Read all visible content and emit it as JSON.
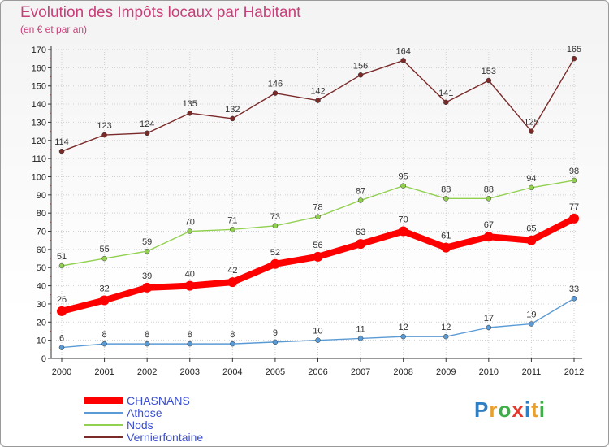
{
  "header": {
    "title": "Evolution des Impôts locaux par Habitant",
    "subtitle": "(en € et par an)"
  },
  "logo": {
    "text": "Proxiti"
  },
  "colors": {
    "CHASNANS": "#ff0000",
    "Athose": "#5b9bd5",
    "Nods": "#92d050",
    "Vernierfontaine": "#7b2a2a",
    "axis": "#333333",
    "gridline": "#d0d0d0"
  },
  "chart_data": {
    "type": "line",
    "title": "Evolution des Impôts locaux par Habitant",
    "subtitle": "(en € et par an)",
    "xlabel": "",
    "ylabel": "",
    "ylim": [
      0,
      170
    ],
    "yticks": [
      0,
      10,
      20,
      30,
      40,
      50,
      60,
      70,
      80,
      90,
      100,
      110,
      120,
      130,
      140,
      150,
      160,
      170
    ],
    "grid": true,
    "legend_position": "bottom-left",
    "x": [
      "2000",
      "2001",
      "2002",
      "2003",
      "2004",
      "2005",
      "2006",
      "2007",
      "2008",
      "2009",
      "2010",
      "2011",
      "2012"
    ],
    "series": [
      {
        "name": "CHASNANS",
        "values": [
          26,
          32,
          39,
          40,
          42,
          52,
          56,
          63,
          70,
          61,
          67,
          65,
          77
        ]
      },
      {
        "name": "Athose",
        "values": [
          6,
          8,
          8,
          8,
          8,
          9,
          10,
          11,
          12,
          12,
          17,
          19,
          33
        ]
      },
      {
        "name": "Nods",
        "values": [
          51,
          55,
          59,
          70,
          71,
          73,
          78,
          87,
          95,
          88,
          88,
          94,
          98
        ]
      },
      {
        "name": "Vernierfontaine",
        "values": [
          114,
          123,
          124,
          135,
          132,
          146,
          142,
          156,
          164,
          141,
          153,
          125,
          165
        ]
      }
    ]
  }
}
